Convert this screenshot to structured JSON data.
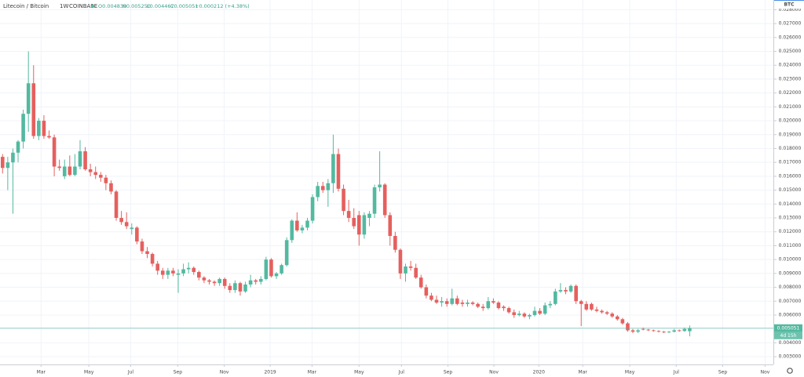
{
  "header": {
    "symbol": "Litecoin / Bitcoin",
    "interval": "1W",
    "exchange": "COINBASE",
    "ohlc": [
      "O0.004839",
      "H0.005250",
      "L0.004467",
      "C0.005051",
      "+0.000212 (+4.38%)"
    ]
  },
  "chart_data": {
    "type": "candlestick",
    "currency": "BTC",
    "last_price_label": "0.005051",
    "countdown": "4d 15h",
    "up_color": "#53b9a0",
    "down_color": "#e5605e",
    "grid": true,
    "xlim": [
      -0.5,
      149.2
    ],
    "ylim": [
      0.00244,
      0.0287
    ],
    "xticks": [
      {
        "value": 7.45,
        "label": "Mar"
      },
      {
        "value": 16.7,
        "label": "May"
      },
      {
        "value": 24.8,
        "label": "Jul"
      },
      {
        "value": 33.9,
        "label": "Sep"
      },
      {
        "value": 42.9,
        "label": "Nov"
      },
      {
        "value": 51.8,
        "label": "2019"
      },
      {
        "value": 59.9,
        "label": "Mar"
      },
      {
        "value": 69,
        "label": "May"
      },
      {
        "value": 77.2,
        "label": "Jul"
      },
      {
        "value": 86.2,
        "label": "Sep"
      },
      {
        "value": 95.1,
        "label": "Nov"
      },
      {
        "value": 103.8,
        "label": "2020"
      },
      {
        "value": 112.3,
        "label": "Mar"
      },
      {
        "value": 121.4,
        "label": "May"
      },
      {
        "value": 130.4,
        "label": "Jul"
      },
      {
        "value": 139.4,
        "label": "Sep"
      },
      {
        "value": 147.6,
        "label": "Nov"
      }
    ],
    "yticks": [
      {
        "value": 0.003,
        "label": "0.003000"
      },
      {
        "value": 0.004,
        "label": "0.004000"
      },
      {
        "value": 0.005,
        "label": "0.005000"
      },
      {
        "value": 0.006,
        "label": "0.006000"
      },
      {
        "value": 0.007,
        "label": "0.007000"
      },
      {
        "value": 0.008,
        "label": "0.008000"
      },
      {
        "value": 0.009,
        "label": "0.009000"
      },
      {
        "value": 0.01,
        "label": "0.010000"
      },
      {
        "value": 0.011,
        "label": "0.011000"
      },
      {
        "value": 0.012,
        "label": "0.012000"
      },
      {
        "value": 0.013,
        "label": "0.013000"
      },
      {
        "value": 0.014,
        "label": "0.014000"
      },
      {
        "value": 0.015,
        "label": "0.015000"
      },
      {
        "value": 0.016,
        "label": "0.016000"
      },
      {
        "value": 0.017,
        "label": "0.017000"
      },
      {
        "value": 0.018,
        "label": "0.018000"
      },
      {
        "value": 0.019,
        "label": "0.019000"
      },
      {
        "value": 0.02,
        "label": "0.020000"
      },
      {
        "value": 0.021,
        "label": "0.021000"
      },
      {
        "value": 0.022,
        "label": "0.022000"
      },
      {
        "value": 0.023,
        "label": "0.023000"
      },
      {
        "value": 0.024,
        "label": "0.024000"
      },
      {
        "value": 0.025,
        "label": "0.025000"
      },
      {
        "value": 0.026,
        "label": "0.026000"
      },
      {
        "value": 0.027,
        "label": "0.027000"
      },
      {
        "value": 0.028,
        "label": "0.028000"
      }
    ],
    "candles": [
      [
        0.0174,
        0.0176,
        0.0162,
        0.0166
      ],
      [
        0.0166,
        0.0174,
        0.015,
        0.017
      ],
      [
        0.017,
        0.018,
        0.0133,
        0.0177
      ],
      [
        0.0177,
        0.0186,
        0.017,
        0.0185
      ],
      [
        0.0185,
        0.0208,
        0.018,
        0.0205
      ],
      [
        0.0205,
        0.025,
        0.0192,
        0.0227
      ],
      [
        0.0227,
        0.024,
        0.0187,
        0.0189
      ],
      [
        0.0189,
        0.0202,
        0.0186,
        0.02
      ],
      [
        0.02,
        0.0204,
        0.0187,
        0.0189
      ],
      [
        0.0189,
        0.0193,
        0.0187,
        0.0188
      ],
      [
        0.0188,
        0.019,
        0.016,
        0.0167
      ],
      [
        0.0167,
        0.0172,
        0.0164,
        0.0166
      ],
      [
        0.016,
        0.0172,
        0.0158,
        0.0167
      ],
      [
        0.0167,
        0.0175,
        0.016,
        0.0161
      ],
      [
        0.0161,
        0.0176,
        0.016,
        0.0167
      ],
      [
        0.0167,
        0.0186,
        0.0165,
        0.0178
      ],
      [
        0.0178,
        0.0181,
        0.0164,
        0.0165
      ],
      [
        0.0165,
        0.0169,
        0.016,
        0.0163
      ],
      [
        0.0163,
        0.0167,
        0.0158,
        0.0161
      ],
      [
        0.0161,
        0.0163,
        0.0156,
        0.0159
      ],
      [
        0.0159,
        0.0161,
        0.015,
        0.0155
      ],
      [
        0.0155,
        0.0157,
        0.0147,
        0.0149
      ],
      [
        0.0149,
        0.015,
        0.0128,
        0.013
      ],
      [
        0.013,
        0.0135,
        0.0125,
        0.0127
      ],
      [
        0.0127,
        0.0134,
        0.0122,
        0.0124
      ],
      [
        0.0122,
        0.0126,
        0.0118,
        0.0123
      ],
      [
        0.0123,
        0.0124,
        0.0111,
        0.0113
      ],
      [
        0.0113,
        0.0115,
        0.0104,
        0.0106
      ],
      [
        0.0106,
        0.0109,
        0.0101,
        0.0104
      ],
      [
        0.0104,
        0.0105,
        0.0095,
        0.0097
      ],
      [
        0.0097,
        0.0099,
        0.0089,
        0.0092
      ],
      [
        0.0092,
        0.0094,
        0.0086,
        0.0089
      ],
      [
        0.0089,
        0.0094,
        0.0086,
        0.0092
      ],
      [
        0.0092,
        0.0094,
        0.0088,
        0.009
      ],
      [
        0.0089,
        0.0093,
        0.0076,
        0.009
      ],
      [
        0.009,
        0.0097,
        0.0088,
        0.0093
      ],
      [
        0.0093,
        0.0098,
        0.009,
        0.0094
      ],
      [
        0.0094,
        0.0095,
        0.0089,
        0.0091
      ],
      [
        0.0091,
        0.0092,
        0.0085,
        0.0087
      ],
      [
        0.0087,
        0.0088,
        0.0083,
        0.0085
      ],
      [
        0.0085,
        0.0086,
        0.0082,
        0.0084
      ],
      [
        0.0084,
        0.0085,
        0.0081,
        0.0083
      ],
      [
        0.0083,
        0.0087,
        0.0081,
        0.0086
      ],
      [
        0.0086,
        0.0087,
        0.0079,
        0.0081
      ],
      [
        0.0081,
        0.0083,
        0.0076,
        0.0078
      ],
      [
        0.0078,
        0.0085,
        0.0076,
        0.0083
      ],
      [
        0.0083,
        0.0084,
        0.0074,
        0.0077
      ],
      [
        0.0077,
        0.0084,
        0.0076,
        0.0082
      ],
      [
        0.0082,
        0.0089,
        0.008,
        0.0085
      ],
      [
        0.0085,
        0.0086,
        0.0082,
        0.0084
      ],
      [
        0.0084,
        0.0088,
        0.0082,
        0.0086
      ],
      [
        0.0086,
        0.0102,
        0.0085,
        0.01
      ],
      [
        0.01,
        0.0101,
        0.0087,
        0.0088
      ],
      [
        0.0088,
        0.0091,
        0.0086,
        0.009
      ],
      [
        0.009,
        0.0097,
        0.0089,
        0.0096
      ],
      [
        0.0096,
        0.0116,
        0.0095,
        0.0114
      ],
      [
        0.0114,
        0.0129,
        0.0112,
        0.0128
      ],
      [
        0.0128,
        0.0134,
        0.012,
        0.0121
      ],
      [
        0.0121,
        0.0125,
        0.0119,
        0.0123
      ],
      [
        0.0123,
        0.013,
        0.0121,
        0.0128
      ],
      [
        0.0128,
        0.0147,
        0.0126,
        0.0145
      ],
      [
        0.0145,
        0.0156,
        0.0142,
        0.0153
      ],
      [
        0.0153,
        0.0156,
        0.0148,
        0.015
      ],
      [
        0.015,
        0.0158,
        0.0138,
        0.0155
      ],
      [
        0.0155,
        0.019,
        0.0148,
        0.0176
      ],
      [
        0.0176,
        0.018,
        0.0149,
        0.0151
      ],
      [
        0.0151,
        0.0154,
        0.0132,
        0.0135
      ],
      [
        0.0135,
        0.0143,
        0.0127,
        0.013
      ],
      [
        0.013,
        0.0137,
        0.0122,
        0.0124
      ],
      [
        0.0132,
        0.0135,
        0.011,
        0.0118
      ],
      [
        0.0118,
        0.0134,
        0.0115,
        0.0132
      ],
      [
        0.013,
        0.0135,
        0.0124,
        0.0133
      ],
      [
        0.0133,
        0.0154,
        0.013,
        0.0152
      ],
      [
        0.0152,
        0.0178,
        0.0149,
        0.0154
      ],
      [
        0.0154,
        0.0155,
        0.013,
        0.0132
      ],
      [
        0.0132,
        0.0134,
        0.011,
        0.0117
      ],
      [
        0.0117,
        0.012,
        0.0105,
        0.0107
      ],
      [
        0.0107,
        0.0108,
        0.0086,
        0.009
      ],
      [
        0.009,
        0.0097,
        0.0084,
        0.0095
      ],
      [
        0.0095,
        0.0099,
        0.0092,
        0.0094
      ],
      [
        0.0094,
        0.0097,
        0.0086,
        0.0087
      ],
      [
        0.0087,
        0.0089,
        0.0079,
        0.008
      ],
      [
        0.008,
        0.0082,
        0.0072,
        0.0074
      ],
      [
        0.0074,
        0.0076,
        0.007,
        0.0071
      ],
      [
        0.0071,
        0.0074,
        0.0068,
        0.0069
      ],
      [
        0.0069,
        0.0073,
        0.0066,
        0.007
      ],
      [
        0.007,
        0.0072,
        0.0066,
        0.0068
      ],
      [
        0.0068,
        0.0079,
        0.0067,
        0.0072
      ],
      [
        0.0072,
        0.0074,
        0.0067,
        0.0068
      ],
      [
        0.0069,
        0.0071,
        0.0066,
        0.0068
      ],
      [
        0.0068,
        0.0071,
        0.0066,
        0.0069
      ],
      [
        0.0069,
        0.007,
        0.0067,
        0.0068
      ],
      [
        0.0068,
        0.0069,
        0.0065,
        0.0066
      ],
      [
        0.0066,
        0.0068,
        0.0063,
        0.0065
      ],
      [
        0.0065,
        0.0073,
        0.0064,
        0.007
      ],
      [
        0.007,
        0.0072,
        0.0068,
        0.0069
      ],
      [
        0.0069,
        0.007,
        0.0064,
        0.0065
      ],
      [
        0.0066,
        0.0067,
        0.0063,
        0.0065
      ],
      [
        0.0065,
        0.0066,
        0.0061,
        0.0062
      ],
      [
        0.0062,
        0.0064,
        0.0058,
        0.006
      ],
      [
        0.006,
        0.0063,
        0.0059,
        0.0061
      ],
      [
        0.0061,
        0.0062,
        0.0058,
        0.0059
      ],
      [
        0.0059,
        0.0061,
        0.0057,
        0.006
      ],
      [
        0.006,
        0.0066,
        0.0059,
        0.0063
      ],
      [
        0.0063,
        0.0065,
        0.006,
        0.0061
      ],
      [
        0.0061,
        0.0069,
        0.006,
        0.0067
      ],
      [
        0.0067,
        0.007,
        0.0065,
        0.0068
      ],
      [
        0.0068,
        0.0079,
        0.0067,
        0.0077
      ],
      [
        0.0077,
        0.0083,
        0.0076,
        0.0078
      ],
      [
        0.0078,
        0.008,
        0.0075,
        0.0077
      ],
      [
        0.0077,
        0.0082,
        0.0076,
        0.0081
      ],
      [
        0.0081,
        0.0082,
        0.0068,
        0.007
      ],
      [
        0.007,
        0.0071,
        0.0052,
        0.0068
      ],
      [
        0.0068,
        0.007,
        0.0063,
        0.0064
      ],
      [
        0.0068,
        0.0069,
        0.0063,
        0.0064
      ],
      [
        0.0064,
        0.0066,
        0.0062,
        0.0063
      ],
      [
        0.0063,
        0.0064,
        0.0061,
        0.0062
      ],
      [
        0.0062,
        0.0063,
        0.006,
        0.0061
      ],
      [
        0.0061,
        0.0062,
        0.0058,
        0.0059
      ],
      [
        0.0059,
        0.006,
        0.0056,
        0.0057
      ],
      [
        0.0057,
        0.0058,
        0.0053,
        0.0054
      ],
      [
        0.0054,
        0.0055,
        0.0048,
        0.0049
      ],
      [
        0.0049,
        0.005,
        0.0047,
        0.0048
      ],
      [
        0.0048,
        0.005,
        0.0047,
        0.0049
      ],
      [
        0.005,
        0.0051,
        0.0049,
        0.00495
      ],
      [
        0.00495,
        0.005,
        0.00485,
        0.0049
      ],
      [
        0.0049,
        0.00495,
        0.0048,
        0.00485
      ],
      [
        0.00485,
        0.0049,
        0.00475,
        0.0048
      ],
      [
        0.0048,
        0.00485,
        0.0047,
        0.00475
      ],
      [
        0.00475,
        0.00485,
        0.0047,
        0.0048
      ],
      [
        0.0048,
        0.005,
        0.00475,
        0.0049
      ],
      [
        0.0049,
        0.00495,
        0.0048,
        0.00485
      ],
      [
        0.00485,
        0.0051,
        0.0048,
        0.005
      ],
      [
        0.004839,
        0.00525,
        0.004467,
        0.005051
      ]
    ]
  }
}
